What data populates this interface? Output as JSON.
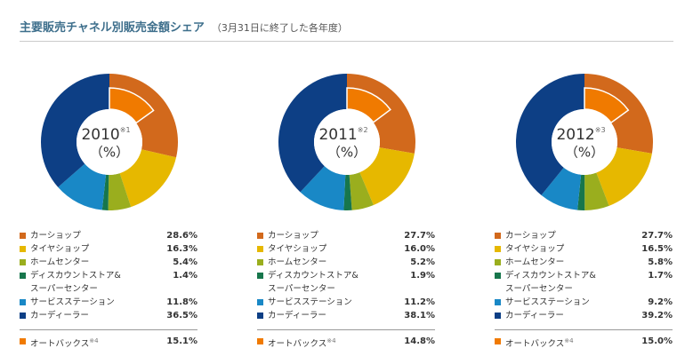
{
  "header": {
    "title": "主要販売チャネル別販売金額シェア",
    "subtitle": "（3月31日に終了した各年度）"
  },
  "chart_data": [
    {
      "type": "donut",
      "title": "2010",
      "title_note": "※1",
      "unit": "（%）",
      "categories": [
        "カーショップ",
        "タイヤショップ",
        "ホームセンター",
        "ディスカウントストア&\nスーパーセンター",
        "サービスステーション",
        "カーディーラー"
      ],
      "values": [
        28.6,
        16.3,
        5.4,
        1.4,
        11.8,
        36.5
      ],
      "value_labels": [
        "28.6%",
        "16.3%",
        "5.4%",
        "1.4%",
        "11.8%",
        "36.5%"
      ],
      "colors": [
        "#d2691c",
        "#e6b800",
        "#9aae1e",
        "#17764c",
        "#1988c6",
        "#0d3f85"
      ],
      "highlight": {
        "name": "オートバックス",
        "note": "※4",
        "value": 15.1,
        "value_label": "15.1%",
        "color": "#f07a00"
      }
    },
    {
      "type": "donut",
      "title": "2011",
      "title_note": "※2",
      "unit": "（%）",
      "categories": [
        "カーショップ",
        "タイヤショップ",
        "ホームセンター",
        "ディスカウントストア&\nスーパーセンター",
        "サービスステーション",
        "カーディーラー"
      ],
      "values": [
        27.7,
        16.0,
        5.2,
        1.9,
        11.2,
        38.1
      ],
      "value_labels": [
        "27.7%",
        "16.0%",
        "5.2%",
        "1.9%",
        "11.2%",
        "38.1%"
      ],
      "colors": [
        "#d2691c",
        "#e6b800",
        "#9aae1e",
        "#17764c",
        "#1988c6",
        "#0d3f85"
      ],
      "highlight": {
        "name": "オートバックス",
        "note": "※4",
        "value": 14.8,
        "value_label": "14.8%",
        "color": "#f07a00"
      }
    },
    {
      "type": "donut",
      "title": "2012",
      "title_note": "※3",
      "unit": "（%）",
      "categories": [
        "カーショップ",
        "タイヤショップ",
        "ホームセンター",
        "ディスカウントストア&\nスーパーセンター",
        "サービスステーション",
        "カーディーラー"
      ],
      "values": [
        27.7,
        16.5,
        5.8,
        1.7,
        9.2,
        39.2
      ],
      "value_labels": [
        "27.7%",
        "16.5%",
        "5.8%",
        "1.7%",
        "9.2%",
        "39.2%"
      ],
      "colors": [
        "#d2691c",
        "#e6b800",
        "#9aae1e",
        "#17764c",
        "#1988c6",
        "#0d3f85"
      ],
      "highlight": {
        "name": "オートバックス",
        "note": "※4",
        "value": 15.0,
        "value_label": "15.0%",
        "color": "#f07a00"
      }
    }
  ]
}
